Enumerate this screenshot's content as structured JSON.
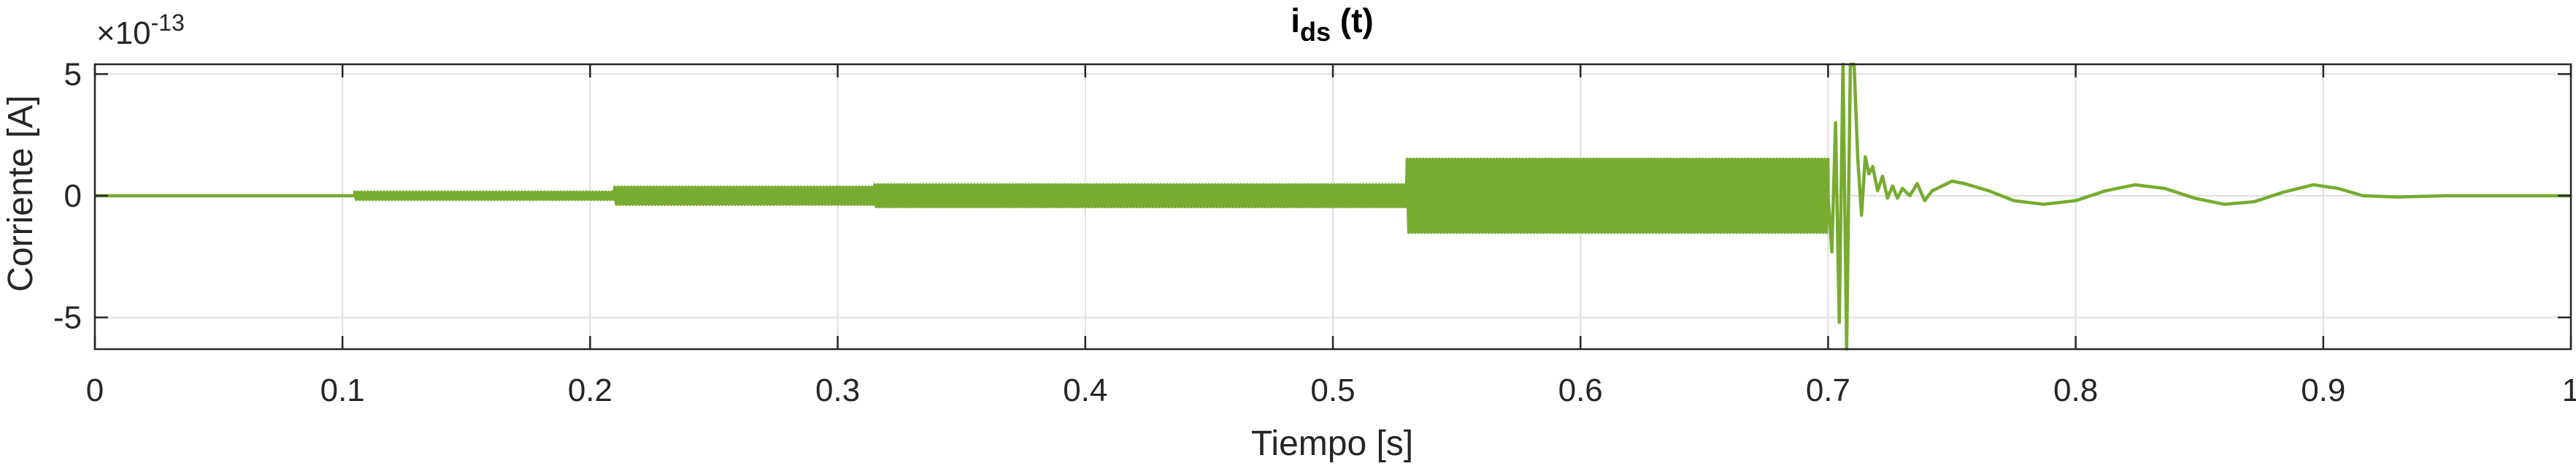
{
  "chart_data": {
    "type": "line",
    "title": "i",
    "title_subscript": "ds",
    "title_suffix": " (t)",
    "xlabel": "Tiempo [s]",
    "ylabel": "Corriente [A]",
    "y_exponent_prefix": "×10",
    "y_exponent": "-13",
    "xlim": [
      0,
      1
    ],
    "ylim": [
      -6.3,
      5.4
    ],
    "grid": true,
    "x_ticks": [
      {
        "value": 0,
        "label": "0"
      },
      {
        "value": 0.1,
        "label": "0.1"
      },
      {
        "value": 0.2,
        "label": "0.2"
      },
      {
        "value": 0.3,
        "label": "0.3"
      },
      {
        "value": 0.4,
        "label": "0.4"
      },
      {
        "value": 0.5,
        "label": "0.5"
      },
      {
        "value": 0.6,
        "label": "0.6"
      },
      {
        "value": 0.7,
        "label": "0.7"
      },
      {
        "value": 0.8,
        "label": "0.8"
      },
      {
        "value": 0.9,
        "label": "0.9"
      },
      {
        "value": 1,
        "label": "1"
      }
    ],
    "y_ticks": [
      {
        "value": 5,
        "label": "5"
      },
      {
        "value": 0,
        "label": "0"
      },
      {
        "value": -5,
        "label": "-5"
      }
    ],
    "series": [
      {
        "color": "#77ac30",
        "segments": [
          {
            "t0": 0.0,
            "t1": 0.105,
            "amp": 0.0,
            "style": "flat"
          },
          {
            "t0": 0.105,
            "t1": 0.21,
            "amp": 0.15,
            "style": "hf"
          },
          {
            "t0": 0.21,
            "t1": 0.315,
            "amp": 0.35,
            "style": "hf"
          },
          {
            "t0": 0.315,
            "t1": 0.53,
            "amp": 0.45,
            "style": "hf"
          },
          {
            "t0": 0.53,
            "t1": 0.7,
            "amp": 1.5,
            "style": "hf"
          }
        ],
        "burst_points": [
          [
            0.7,
            0.0
          ],
          [
            0.7015,
            -2.3
          ],
          [
            0.703,
            3.0
          ],
          [
            0.7045,
            -5.2
          ],
          [
            0.706,
            5.4
          ],
          [
            0.7075,
            -6.3
          ],
          [
            0.709,
            5.4
          ],
          [
            0.7105,
            5.4
          ],
          [
            0.712,
            1.5
          ],
          [
            0.7135,
            -0.8
          ],
          [
            0.715,
            1.6
          ],
          [
            0.7165,
            0.9
          ],
          [
            0.718,
            1.2
          ],
          [
            0.72,
            0.2
          ],
          [
            0.722,
            0.8
          ],
          [
            0.724,
            -0.1
          ],
          [
            0.726,
            0.4
          ],
          [
            0.728,
            -0.1
          ],
          [
            0.73,
            0.3
          ],
          [
            0.733,
            0.0
          ],
          [
            0.736,
            0.5
          ],
          [
            0.739,
            -0.2
          ],
          [
            0.742,
            0.2
          ],
          [
            0.746,
            0.4
          ],
          [
            0.75,
            0.6
          ],
          [
            0.755,
            0.5
          ]
        ],
        "slow_points": [
          [
            0.755,
            0.5
          ],
          [
            0.765,
            0.2
          ],
          [
            0.775,
            -0.2
          ],
          [
            0.787,
            -0.35
          ],
          [
            0.8,
            -0.2
          ],
          [
            0.812,
            0.2
          ],
          [
            0.824,
            0.45
          ],
          [
            0.836,
            0.3
          ],
          [
            0.848,
            -0.1
          ],
          [
            0.86,
            -0.35
          ],
          [
            0.872,
            -0.25
          ],
          [
            0.884,
            0.15
          ],
          [
            0.896,
            0.45
          ],
          [
            0.906,
            0.3
          ],
          [
            0.916,
            0.0
          ],
          [
            0.93,
            -0.05
          ],
          [
            0.95,
            0.0
          ],
          [
            1.0,
            0.0
          ]
        ]
      }
    ]
  }
}
